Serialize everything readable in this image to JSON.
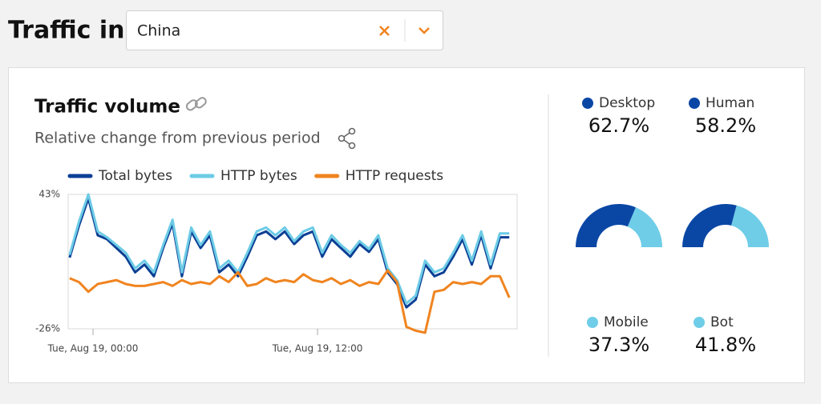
{
  "header": {
    "title": "Traffic in",
    "select_value": "China"
  },
  "card": {
    "title": "Traffic volume",
    "subtitle": "Relative change from previous period"
  },
  "chart_data": [
    {
      "type": "line",
      "x": [
        -1.25,
        -0.75,
        -0.25,
        0.25,
        0.75,
        1.25,
        1.75,
        2.25,
        2.75,
        3.25,
        3.75,
        4.25,
        4.75,
        5.25,
        5.75,
        6.25,
        6.75,
        7.25,
        7.75,
        8.25,
        8.75,
        9.25,
        9.75,
        10.25,
        10.75,
        11.25,
        11.75,
        12.25,
        12.75,
        13.25,
        13.75,
        14.25,
        14.75,
        15.25,
        15.75,
        16.25,
        16.75,
        17.25,
        17.75,
        18.25,
        18.75,
        19.25,
        19.75,
        20.25,
        20.75,
        21.25,
        21.75,
        22.25
      ],
      "xlim": [
        -1.33,
        22.67
      ],
      "xticks": [
        {
          "value": 0,
          "label": "Tue, Aug 19, 00:00"
        },
        {
          "value": 12,
          "label": "Tue, Aug 19, 12:00"
        }
      ],
      "ylim": [
        -26,
        43
      ],
      "yticks": [
        {
          "value": 43,
          "label": "43%"
        },
        {
          "value": -26,
          "label": "-26%"
        }
      ],
      "series": [
        {
          "name": "Total bytes",
          "color": "#0b3f94",
          "values": [
            10.6,
            27,
            41,
            22,
            20,
            15.5,
            11,
            3,
            7,
            1,
            15.5,
            28,
            1,
            24,
            15.5,
            22,
            3,
            7,
            1,
            11,
            22,
            24,
            20,
            24,
            17.5,
            22,
            24,
            11,
            20,
            15.5,
            11,
            17.5,
            13.5,
            20,
            3,
            -3,
            -15,
            -11,
            7,
            1,
            3,
            11,
            20,
            7,
            22,
            5,
            21,
            21
          ]
        },
        {
          "name": "HTTP bytes",
          "color": "#6ccbe6",
          "values": [
            12,
            29,
            43,
            24,
            21,
            17,
            13,
            5,
            9,
            3,
            17,
            30,
            3,
            26,
            17,
            24,
            5,
            9,
            3,
            13,
            24,
            26,
            22,
            26,
            19,
            24,
            26,
            13,
            22,
            17,
            13,
            19,
            15,
            22,
            5,
            -1,
            -13,
            -9,
            9,
            3,
            5,
            13,
            22,
            9,
            24,
            7,
            23,
            23
          ]
        },
        {
          "name": "HTTP requests",
          "color": "#f0841f",
          "values": [
            0,
            -2,
            -7,
            -3,
            -2,
            -1,
            -3,
            -4,
            -4,
            -3,
            -2,
            -4,
            -1,
            -3,
            -2,
            -3,
            1,
            -2,
            3,
            -4,
            -3,
            0,
            -2,
            -1,
            -2,
            2,
            -1,
            -2,
            0,
            -3,
            -1,
            -4,
            -2,
            -3,
            4,
            -2,
            -25,
            -27,
            -28,
            -7,
            -6,
            -2,
            -3,
            -2,
            -3,
            1,
            1,
            -10
          ]
        }
      ]
    },
    {
      "type": "donut",
      "categories": [
        "Desktop",
        "Mobile"
      ],
      "values": [
        62.7,
        37.3
      ],
      "value_labels": [
        "62.7%",
        "37.3%"
      ],
      "colors": [
        "#0a47a5",
        "#6fcde8"
      ]
    },
    {
      "type": "donut",
      "categories": [
        "Human",
        "Bot"
      ],
      "values": [
        58.2,
        41.8
      ],
      "value_labels": [
        "58.2%",
        "41.8%"
      ],
      "colors": [
        "#0a47a5",
        "#6fcde8"
      ]
    }
  ]
}
